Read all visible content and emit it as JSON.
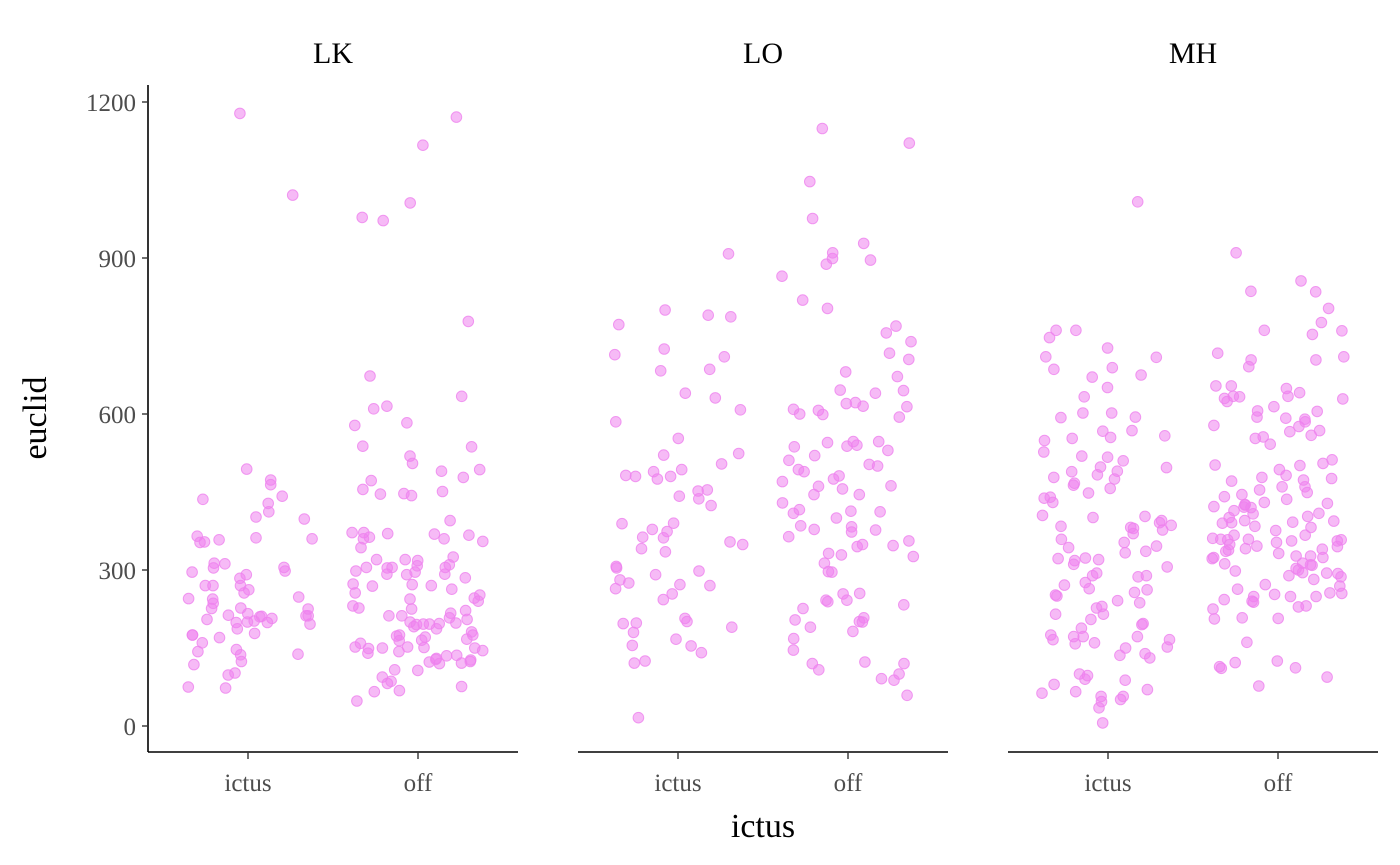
{
  "chart_data": {
    "type": "scatter",
    "title": "",
    "xlabel": "ictus",
    "ylabel": "euclid",
    "ylim": [
      -50,
      1240
    ],
    "yticks": [
      0,
      300,
      600,
      900,
      1200
    ],
    "categories": [
      "ictus",
      "off"
    ],
    "point_color": "#ee82ee",
    "grid": false,
    "panels": [
      {
        "name": "LK",
        "series": [
          {
            "name": "ictus",
            "values": [
              494,
              402,
              365,
              313,
              270,
              262,
              175,
              138,
              210,
              199,
              170,
              298,
              412,
              296,
              216,
              270,
              473,
              436,
              362,
              291,
              270,
              245,
              212,
              196,
              143,
              137,
              212,
              205,
              187,
              178,
              464,
              358,
              354,
              360,
              227,
              244,
              202,
              73,
              160,
              305,
              213,
              98,
              175,
              398,
              304,
              248,
              256,
              236,
              211,
              102,
              442,
              428,
              353,
              226,
              124,
              118,
              75,
              147,
              207,
              199,
              225,
              312,
              284,
              200,
              1178,
              1021
            ]
          },
          {
            "name": "off",
            "values": [
              443,
              519,
              615,
              972,
              395,
              363,
              370,
              325,
              285,
              252,
              246,
              222,
              217,
              187,
              171,
              152,
              108,
              164,
              446,
              447,
              451,
              310,
              304,
              240,
              231,
              175,
              123,
              1006,
              372,
              355,
              272,
              205,
              196,
              191,
              149,
              136,
              124,
              292,
              256,
              269,
              305,
              360,
              197,
              167,
              94,
              76,
              66,
              48,
              538,
              578,
              1117,
              634,
              478,
              472,
              308,
              227,
              212,
              195,
              159,
              143,
              150,
              86,
              1171,
              673,
              610,
              372,
              369,
              360,
              320,
              305,
              296,
              291,
              273,
              263,
              225,
              208,
              173,
              150,
              135,
              130,
              82,
              68,
              978,
              778,
              455,
              343,
              320,
              305,
              298,
              270,
              244,
              212,
              196,
              181,
              165,
              152,
              140,
              127,
              120,
              107,
              537,
              490,
              505,
              493,
              367,
              583,
              318,
              292,
              198,
              175,
              151,
              145,
              128,
              121,
              200
            ]
          }
        ]
      },
      {
        "name": "LO",
        "series": [
          {
            "name": "ictus",
            "values": [
              389,
              608,
              640,
              452,
              521,
              424,
              631,
              553,
              480,
              908,
              454,
              772,
              683,
              390,
              349,
              298,
              155,
              141,
              121,
              16,
              493,
              489,
              714,
              524,
              272,
              304,
              243,
              198,
              437,
              363,
              686,
              378,
              190,
              154,
              725,
              504,
              480,
              475,
              374,
              354,
              201,
              197,
              180,
              167,
              125,
              800,
              442,
              291,
              264,
              281,
              270,
              254,
              207,
              787,
              482,
              335,
              341,
              362,
              307,
              275,
              790,
              710,
              585
            ]
          },
          {
            "name": "off",
            "values": [
              182,
              108,
              803,
              976,
              547,
              538,
              120,
              123,
              100,
              59,
              899,
              614,
              530,
              400,
              146,
              1047,
              600,
              500,
              255,
              1121,
              607,
              332,
              313,
              226,
              645,
              928,
              756,
              640,
              461,
              445,
              416,
              377,
              356,
              200,
              242,
              888,
              622,
              540,
              493,
              475,
              462,
              412,
              383,
              373,
              349,
              910,
              609,
              385,
              296,
              233,
              91,
              120,
              329,
              769,
              646,
              409,
              594,
              545,
              520,
              378,
              364,
              297,
              239,
              739,
              717,
              615,
              547,
              511,
              254,
              819,
              681,
              599,
              445,
              413,
              345,
              190,
              201,
              503,
              242,
              537,
              865,
              620,
              456,
              429,
              208,
              204,
              168,
              1149,
              481,
              896,
              705,
              672,
              489,
              470,
              347,
              326,
              88
            ]
          }
        ]
      },
      {
        "name": "MH",
        "series": [
          {
            "name": "ictus",
            "values": [
              675,
              490,
              377,
              549,
              602,
              510,
              440,
              333,
              205,
              188,
              152,
              51,
              593,
              568,
              594,
              527,
              467,
              322,
              90,
              747,
              761,
              727,
              689,
              602,
              497,
              478,
              448,
              430,
              384,
              359,
              323,
              250,
              276,
              252,
              227,
              172,
              131,
              6,
              457,
              391,
              382,
              264,
              237,
              215,
              158,
              139,
              66,
              57,
              35,
              567,
              709,
              761,
              651,
              483,
              489,
              403,
              380,
              343,
              287,
              215,
              230,
              195,
              175,
              160,
              100,
              63,
              47,
              1008,
              633,
              710,
              517,
              498,
              475,
              438,
              336,
              320,
              257,
              197,
              166,
              166,
              70,
              558,
              553,
              519,
              401,
              395,
              370,
              346,
              294,
              289,
              289,
              271,
              262,
              241,
              136,
              97,
              88,
              80,
              57,
              671,
              686,
              555,
              463,
              405,
              386,
              353,
              318,
              311,
              306,
              172,
              172,
              150
            ]
          },
          {
            "name": "off",
            "values": [
              761,
              505,
              441,
              349,
              324,
              310,
              294,
              229,
              225,
              206,
              910,
              836,
              710,
              578,
              502,
              445,
              436,
              392,
              358,
              341,
              253,
              243,
              125,
              654,
              649,
              585,
              473,
              356,
              240,
              803,
              501,
              460,
              422,
              401,
              384,
              332,
              309,
              289,
              282,
              269,
              256,
              208,
              122,
              856,
              704,
              605,
              594,
              556,
              425,
              408,
              394,
              345,
              322,
              249,
              238,
              776,
              760,
              753,
              633,
              606,
              590,
              592,
              568,
              482,
              420,
              409,
              382,
              340,
              327,
              295,
              249,
              717,
              704,
              629,
              624,
              614,
              542,
              478,
              471,
              454,
              426,
              421,
              414,
              391,
              367,
              359,
              353,
              346,
              336,
              313,
              298,
              111,
              634,
              630,
              566,
              553,
              493,
              390,
              356,
              324,
              293,
              272,
              207,
              112,
              654,
              512,
              460,
              395,
              376,
              359,
              338,
              327,
              300,
              263,
              249,
              231,
              94,
              77,
              576,
              634,
              559,
              476,
              449,
              430,
              428,
              403,
              367,
              358,
              361,
              312,
              303,
              287,
              255,
              161,
              114,
              835,
              691,
              641
            ]
          }
        ]
      }
    ]
  }
}
